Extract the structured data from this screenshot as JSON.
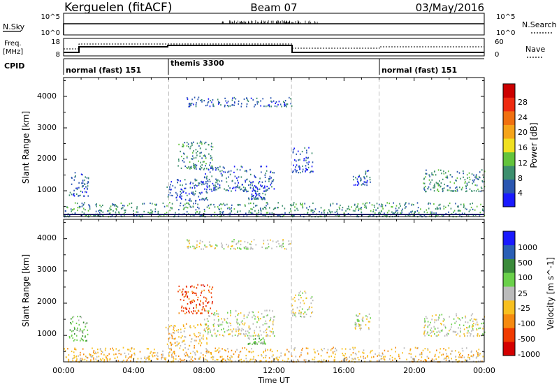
{
  "header": {
    "station": "Kerguelen (fitACF)",
    "beam": "Beam 07",
    "date": "03/May/2016"
  },
  "strips": {
    "nsky_label": "N.Sky",
    "nsky_ticks": [
      "10^5",
      "10^0"
    ],
    "nsearch_label": "N.Search",
    "nsearch_ticks": [
      "10^5",
      "10^0"
    ],
    "freq_label": "Freq.",
    "freq_unit": "[MHz]",
    "freq_ticks": [
      "18",
      "8"
    ],
    "nave_label": "Nave",
    "nave_ticks": [
      "60",
      "0"
    ],
    "cpid_label": "CPID",
    "cpid_modes": [
      {
        "name": "normal (fast) 151",
        "start": 0,
        "end": 6
      },
      {
        "name": "themis 3300",
        "start": 6,
        "end": 18
      },
      {
        "name": "normal (fast) 151",
        "start": 18,
        "end": 24
      }
    ]
  },
  "colors": {
    "power_scale": [
      "#1a1aff",
      "#2a56b0",
      "#3d8f6e",
      "#63c43c",
      "#f0e020",
      "#f5a41a",
      "#f07010",
      "#ee2a10",
      "#cc0000"
    ],
    "velocity_scale": [
      "#d40000",
      "#f03a00",
      "#f58a10",
      "#f7c020",
      "#bbbbbb",
      "#6ad04a",
      "#3a8a3a",
      "#2a5fb5",
      "#1a1aff"
    ]
  },
  "chart_data": [
    {
      "type": "heatmap",
      "title": "",
      "xlabel": "",
      "ylabel": "Slant Range [km]",
      "xlim": [
        0,
        24
      ],
      "ylim": [
        180,
        4600
      ],
      "x_ticks": [
        "00:00",
        "04:00",
        "08:00",
        "12:00",
        "16:00",
        "20:00",
        "00:00"
      ],
      "y_ticks": [
        "1000",
        "2000",
        "3000",
        "4000"
      ],
      "colorbar": {
        "label": "Power [dB]",
        "ticks": [
          "4",
          "8",
          "12",
          "16",
          "20",
          "24",
          "28"
        ]
      },
      "scatter_regions": [
        {
          "t0": 0.3,
          "t1": 1.4,
          "r0": 850,
          "r1": 1650,
          "level": 1
        },
        {
          "t0": 0.0,
          "t1": 24.0,
          "r0": 200,
          "r1": 650,
          "level": 2
        },
        {
          "t0": 5.8,
          "t1": 8.2,
          "r0": 700,
          "r1": 1400,
          "level": 1
        },
        {
          "t0": 6.5,
          "t1": 8.5,
          "r0": 1700,
          "r1": 2600,
          "level": 2
        },
        {
          "t0": 8.0,
          "t1": 12.0,
          "r0": 1000,
          "r1": 1800,
          "level": 1
        },
        {
          "t0": 10.5,
          "t1": 11.5,
          "r0": 750,
          "r1": 950,
          "level": 1
        },
        {
          "t0": 13.0,
          "t1": 14.2,
          "r0": 1600,
          "r1": 2400,
          "level": 1
        },
        {
          "t0": 16.5,
          "t1": 17.5,
          "r0": 1200,
          "r1": 1700,
          "level": 1
        },
        {
          "t0": 20.5,
          "t1": 24.0,
          "r0": 1000,
          "r1": 1700,
          "level": 2
        },
        {
          "t0": 7.0,
          "t1": 13.0,
          "r0": 3700,
          "r1": 4000,
          "level": 1
        }
      ]
    },
    {
      "type": "heatmap",
      "title": "",
      "xlabel": "Time UT",
      "ylabel": "Slant Range [km]",
      "xlim": [
        0,
        24
      ],
      "ylim": [
        180,
        4600
      ],
      "x_ticks": [
        "00:00",
        "04:00",
        "08:00",
        "12:00",
        "16:00",
        "20:00",
        "00:00"
      ],
      "y_ticks": [
        "1000",
        "2000",
        "3000",
        "4000"
      ],
      "colorbar": {
        "label": "Velocity [m s^-1]",
        "ticks": [
          "-1000",
          "-500",
          "-100",
          "-25",
          "25",
          "100",
          "500",
          "1000"
        ]
      },
      "scatter_regions": [
        {
          "t0": 0.3,
          "t1": 1.4,
          "r0": 850,
          "r1": 1650,
          "level": 5
        },
        {
          "t0": 0.0,
          "t1": 24.0,
          "r0": 200,
          "r1": 650,
          "level": 3
        },
        {
          "t0": 5.8,
          "t1": 8.2,
          "r0": 700,
          "r1": 1400,
          "level": 3
        },
        {
          "t0": 6.5,
          "t1": 8.5,
          "r0": 1700,
          "r1": 2600,
          "level": 1
        },
        {
          "t0": 8.0,
          "t1": 12.0,
          "r0": 1000,
          "r1": 1800,
          "level": 4
        },
        {
          "t0": 10.5,
          "t1": 11.5,
          "r0": 750,
          "r1": 950,
          "level": 5
        },
        {
          "t0": 13.0,
          "t1": 14.2,
          "r0": 1600,
          "r1": 2400,
          "level": 4
        },
        {
          "t0": 16.5,
          "t1": 17.5,
          "r0": 1200,
          "r1": 1700,
          "level": 4
        },
        {
          "t0": 20.5,
          "t1": 24.0,
          "r0": 1000,
          "r1": 1700,
          "level": 4
        },
        {
          "t0": 7.0,
          "t1": 13.0,
          "r0": 3700,
          "r1": 4000,
          "level": 4
        }
      ]
    }
  ]
}
